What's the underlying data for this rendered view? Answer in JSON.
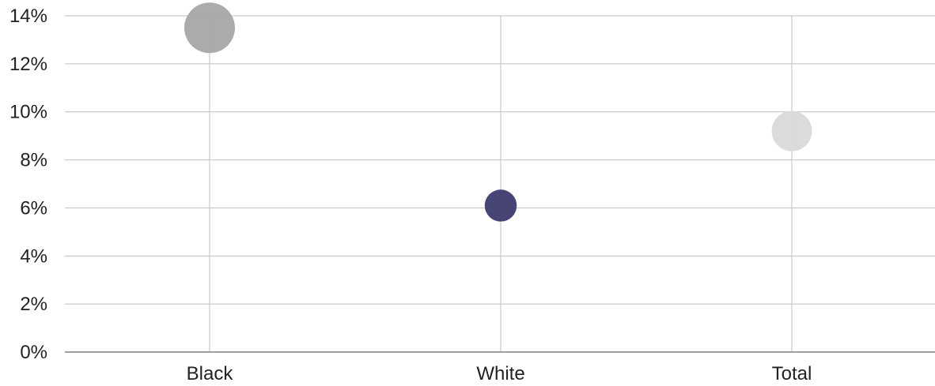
{
  "chart_data": {
    "type": "scatter",
    "categories": [
      "Black",
      "White",
      "Total"
    ],
    "values": [
      0.135,
      0.061,
      0.092
    ],
    "bubble_sizes": [
      3,
      1.2,
      1.9
    ],
    "point_colors": [
      "#a6a6a6",
      "#3d3b6e",
      "#d9d9d9"
    ],
    "y_ticks": [
      "0%",
      "2%",
      "4%",
      "6%",
      "8%",
      "10%",
      "12%",
      "14%"
    ],
    "ylim": [
      0,
      0.14
    ],
    "grid": true,
    "colors": {
      "grid": "#bfbfbf",
      "axis": "#808080",
      "text": "#222222"
    }
  }
}
